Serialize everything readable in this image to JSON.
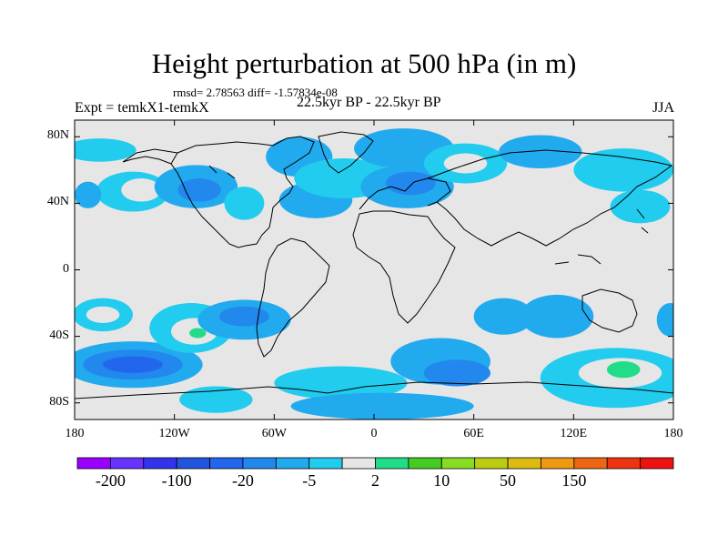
{
  "title": "Height perturbation at 500 hPa (in m)",
  "stats": "rmsd= 2.78563 diff= -1.57834e-08",
  "experiment": "Expt = temkX1-temkX",
  "period": "22.5kyr BP - 22.5kyr BP",
  "season": "JJA",
  "map": {
    "lon_range": [
      -180,
      180
    ],
    "lat_range": [
      -90,
      90
    ],
    "land_color": "#e6e6e6",
    "ocean_color": "#e6e6e6",
    "coast_color": "#000000",
    "y_ticks": [
      {
        "lat": 80,
        "label": "80N"
      },
      {
        "lat": 40,
        "label": "40N"
      },
      {
        "lat": 0,
        "label": "0"
      },
      {
        "lat": -40,
        "label": "40S"
      },
      {
        "lat": -80,
        "label": "80S"
      }
    ],
    "x_ticks": [
      {
        "lon": -180,
        "label": "180"
      },
      {
        "lon": -120,
        "label": "120W"
      },
      {
        "lon": -60,
        "label": "60W"
      },
      {
        "lon": 0,
        "label": "0"
      },
      {
        "lon": 60,
        "label": "60E"
      },
      {
        "lon": 120,
        "label": "120E"
      },
      {
        "lon": 180,
        "label": "180"
      }
    ],
    "anomalies": [
      {
        "lon": -165,
        "lat": 72,
        "rlon": 22,
        "rlat": 7,
        "level": 7
      },
      {
        "lon": -145,
        "lat": 47,
        "rlon": 22,
        "rlat": 12,
        "level": 7
      },
      {
        "lon": -140,
        "lat": 48,
        "rlon": 12,
        "rlat": 7,
        "level": 8
      },
      {
        "lon": -107,
        "lat": 50,
        "rlon": 25,
        "rlat": 13,
        "level": 6
      },
      {
        "lon": -105,
        "lat": 48,
        "rlon": 13,
        "rlat": 7,
        "level": 5
      },
      {
        "lon": -78,
        "lat": 40,
        "rlon": 12,
        "rlat": 10,
        "level": 7
      },
      {
        "lon": -45,
        "lat": 68,
        "rlon": 20,
        "rlat": 12,
        "level": 6
      },
      {
        "lon": -35,
        "lat": 42,
        "rlon": 22,
        "rlat": 11,
        "level": 6
      },
      {
        "lon": -18,
        "lat": 55,
        "rlon": 30,
        "rlat": 12,
        "level": 7
      },
      {
        "lon": 18,
        "lat": 73,
        "rlon": 30,
        "rlat": 12,
        "level": 6
      },
      {
        "lon": 20,
        "lat": 50,
        "rlon": 28,
        "rlat": 13,
        "level": 6
      },
      {
        "lon": 22,
        "lat": 52,
        "rlon": 15,
        "rlat": 7,
        "level": 5
      },
      {
        "lon": 55,
        "lat": 64,
        "rlon": 25,
        "rlat": 12,
        "level": 7
      },
      {
        "lon": 55,
        "lat": 64,
        "rlon": 13,
        "rlat": 6,
        "level": 8
      },
      {
        "lon": 100,
        "lat": 71,
        "rlon": 25,
        "rlat": 10,
        "level": 6
      },
      {
        "lon": 150,
        "lat": 60,
        "rlon": 30,
        "rlat": 13,
        "level": 7
      },
      {
        "lon": 160,
        "lat": 38,
        "rlon": 18,
        "rlat": 10,
        "level": 7
      },
      {
        "lon": -172,
        "lat": 45,
        "rlon": 8,
        "rlat": 8,
        "level": 6
      },
      {
        "lon": -163,
        "lat": -27,
        "rlon": 18,
        "rlat": 10,
        "level": 7
      },
      {
        "lon": -163,
        "lat": -27,
        "rlon": 10,
        "rlat": 5,
        "level": 8
      },
      {
        "lon": -145,
        "lat": -57,
        "rlon": 42,
        "rlat": 14,
        "level": 6
      },
      {
        "lon": -145,
        "lat": -57,
        "rlon": 30,
        "rlat": 9,
        "level": 5
      },
      {
        "lon": -145,
        "lat": -57,
        "rlon": 18,
        "rlat": 5,
        "level": 4
      },
      {
        "lon": -110,
        "lat": -35,
        "rlon": 25,
        "rlat": 15,
        "level": 7
      },
      {
        "lon": -108,
        "lat": -37,
        "rlon": 14,
        "rlat": 8,
        "level": 8
      },
      {
        "lon": -106,
        "lat": -38,
        "rlon": 5,
        "rlat": 3,
        "level": 9
      },
      {
        "lon": -78,
        "lat": -30,
        "rlon": 28,
        "rlat": 12,
        "level": 6
      },
      {
        "lon": -78,
        "lat": -28,
        "rlon": 15,
        "rlat": 6,
        "level": 5
      },
      {
        "lon": -95,
        "lat": -78,
        "rlon": 22,
        "rlat": 8,
        "level": 7
      },
      {
        "lon": -20,
        "lat": -68,
        "rlon": 40,
        "rlat": 10,
        "level": 7
      },
      {
        "lon": 5,
        "lat": -82,
        "rlon": 55,
        "rlat": 8,
        "level": 6
      },
      {
        "lon": 40,
        "lat": -55,
        "rlon": 30,
        "rlat": 14,
        "level": 6
      },
      {
        "lon": 50,
        "lat": -62,
        "rlon": 20,
        "rlat": 8,
        "level": 5
      },
      {
        "lon": 78,
        "lat": -28,
        "rlon": 18,
        "rlat": 11,
        "level": 6
      },
      {
        "lon": 110,
        "lat": -28,
        "rlon": 22,
        "rlat": 13,
        "level": 6
      },
      {
        "lon": 145,
        "lat": -65,
        "rlon": 45,
        "rlat": 18,
        "level": 7
      },
      {
        "lon": 148,
        "lat": -62,
        "rlon": 25,
        "rlat": 9,
        "level": 8
      },
      {
        "lon": 150,
        "lat": -60,
        "rlon": 10,
        "rlat": 5,
        "level": 9
      },
      {
        "lon": 178,
        "lat": -30,
        "rlon": 8,
        "rlat": 10,
        "level": 6
      }
    ]
  },
  "colorbar": {
    "colors": [
      "#9900ff",
      "#6633ff",
      "#3333ee",
      "#2255dd",
      "#2266ee",
      "#2288ee",
      "#22aaee",
      "#22ccee",
      "#e6e6e6",
      "#22dd88",
      "#44cc22",
      "#88dd22",
      "#bbcc11",
      "#ddbb11",
      "#ee9911",
      "#ee6611",
      "#ee3311",
      "#ee1111"
    ],
    "labels": [
      {
        "index": 1,
        "text": "-200"
      },
      {
        "index": 3,
        "text": "-100"
      },
      {
        "index": 5,
        "text": "-20"
      },
      {
        "index": 7,
        "text": "-5"
      },
      {
        "index": 9,
        "text": "2"
      },
      {
        "index": 11,
        "text": "10"
      },
      {
        "index": 13,
        "text": "50"
      },
      {
        "index": 15,
        "text": "150"
      }
    ]
  }
}
